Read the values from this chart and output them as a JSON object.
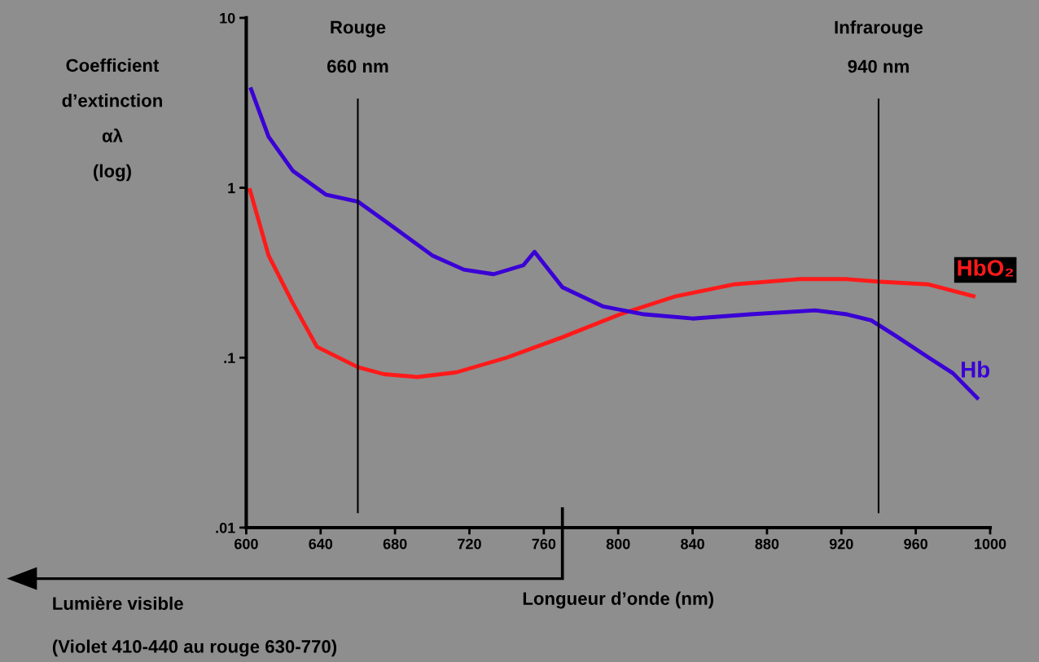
{
  "chart_data": {
    "type": "line",
    "xlabel": "Longueur d’onde (nm)",
    "ylabel": "Coefficient\nd’extinction\nαλ\n(log)",
    "log": "y",
    "xlim": [
      600,
      1000
    ],
    "ylim": [
      0.01,
      10
    ],
    "xticks": [
      600,
      640,
      680,
      720,
      760,
      800,
      840,
      880,
      920,
      960,
      1000
    ],
    "yticks": [
      {
        "value": 0.01,
        "label": ".01"
      },
      {
        "value": 0.1,
        "label": ".1"
      },
      1,
      10
    ],
    "grid": false,
    "legend": false,
    "marker": "none",
    "line_style": "solid",
    "series": [
      {
        "name": "HbO₂",
        "color": "#ff1a1a",
        "x": [
          602,
          612,
          625,
          638,
          660,
          674,
          692,
          713,
          740,
          770,
          801,
          831,
          862,
          897,
          923,
          941,
          967,
          991
        ],
        "values": [
          0.97,
          0.4,
          0.21,
          0.116,
          0.088,
          0.08,
          0.077,
          0.082,
          0.1,
          0.132,
          0.18,
          0.23,
          0.27,
          0.29,
          0.29,
          0.28,
          0.27,
          0.23
        ]
      },
      {
        "name": "Hb",
        "color": "#3a00d6",
        "x": [
          602.6,
          612,
          625,
          643,
          660,
          678,
          700,
          717,
          733,
          749,
          755,
          770,
          792,
          814,
          840,
          871,
          906,
          923,
          936,
          949,
          967,
          980,
          993
        ],
        "values": [
          3.8,
          2.0,
          1.26,
          0.91,
          0.83,
          0.6,
          0.4,
          0.33,
          0.31,
          0.35,
          0.42,
          0.26,
          0.2,
          0.18,
          0.17,
          0.18,
          0.19,
          0.18,
          0.166,
          0.135,
          0.1,
          0.081,
          0.058
        ]
      }
    ],
    "ref_lines": [
      {
        "axis": "x",
        "value": 660,
        "label": "Rouge\n\n660 nm",
        "color": "#000000"
      },
      {
        "axis": "x",
        "value": 940,
        "label": "Infrarouge\n\n940 nm",
        "color": "#000000"
      }
    ],
    "annotations": [
      "Lumière visible",
      "(Violet 410-440 au rouge 630-770)"
    ]
  }
}
